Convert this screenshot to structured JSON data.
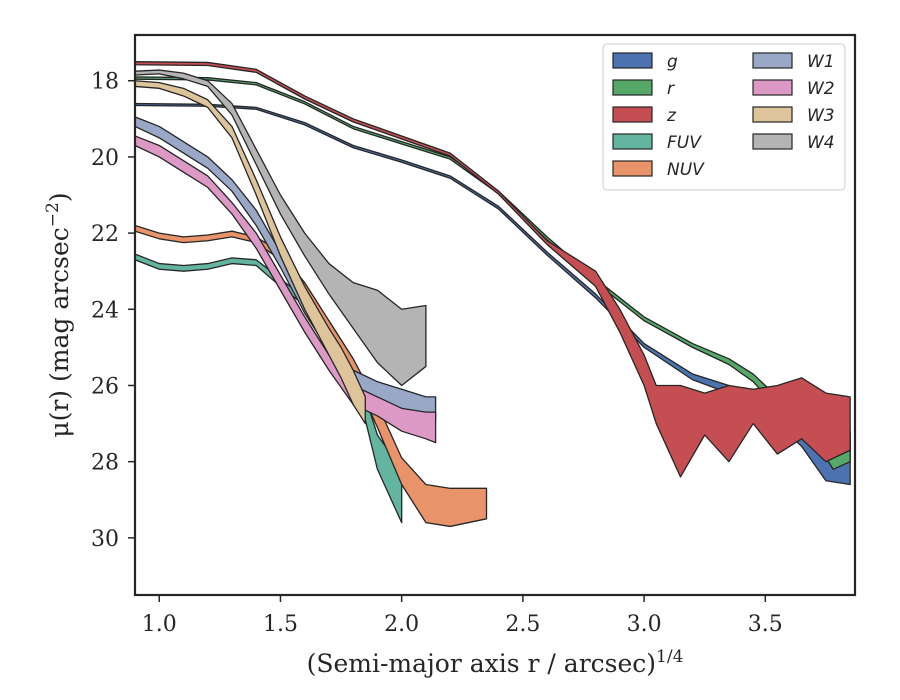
{
  "chart_data": {
    "type": "area",
    "xlabel": "(Semi-major axis r / arcsec)",
    "xlabel_exponent": "1/4",
    "ylabel": "μ(r) (mag arcsec",
    "ylabel_exponent": "−2",
    "ylabel_close": ")",
    "xlim": [
      0.9,
      3.87
    ],
    "ylim": [
      31.5,
      16.8
    ],
    "y_inverted": true,
    "xticks": [
      1.0,
      1.5,
      2.0,
      2.5,
      3.0,
      3.5
    ],
    "xtick_labels": [
      "1.0",
      "1.5",
      "2.0",
      "2.5",
      "3.0",
      "3.5"
    ],
    "yticks": [
      18,
      20,
      22,
      24,
      26,
      28,
      30
    ],
    "ytick_labels": [
      "18",
      "20",
      "22",
      "24",
      "26",
      "28",
      "30"
    ],
    "grid": false,
    "legend_placement": "top-right",
    "legend_columns": 2,
    "series": [
      {
        "name": "g",
        "color": "#4c72b0",
        "points": [
          [
            0.9,
            18.6,
            18.65
          ],
          [
            1.2,
            18.62,
            18.67
          ],
          [
            1.4,
            18.7,
            18.75
          ],
          [
            1.6,
            19.1,
            19.16
          ],
          [
            1.8,
            19.7,
            19.76
          ],
          [
            2.0,
            20.08,
            20.14
          ],
          [
            2.2,
            20.5,
            20.56
          ],
          [
            2.4,
            21.3,
            21.37
          ],
          [
            2.6,
            22.5,
            22.58
          ],
          [
            2.8,
            23.6,
            23.7
          ],
          [
            3.0,
            24.9,
            25.0
          ],
          [
            3.2,
            25.7,
            25.85
          ],
          [
            3.35,
            26.0,
            26.2
          ],
          [
            3.45,
            26.3,
            26.55
          ],
          [
            3.55,
            26.7,
            27.0
          ],
          [
            3.65,
            27.2,
            27.6
          ],
          [
            3.75,
            27.5,
            28.5
          ],
          [
            3.85,
            27.2,
            28.6
          ]
        ]
      },
      {
        "name": "r",
        "color": "#55a868",
        "points": [
          [
            0.9,
            17.9,
            17.96
          ],
          [
            1.2,
            17.92,
            17.98
          ],
          [
            1.4,
            18.05,
            18.11
          ],
          [
            1.6,
            18.55,
            18.61
          ],
          [
            1.8,
            19.2,
            19.26
          ],
          [
            2.0,
            19.6,
            19.66
          ],
          [
            2.2,
            20.0,
            20.06
          ],
          [
            2.4,
            20.9,
            20.97
          ],
          [
            2.6,
            22.1,
            22.18
          ],
          [
            2.8,
            23.2,
            23.3
          ],
          [
            3.0,
            24.2,
            24.3
          ],
          [
            3.2,
            24.9,
            25.0
          ],
          [
            3.35,
            25.3,
            25.45
          ],
          [
            3.45,
            25.7,
            25.9
          ],
          [
            3.55,
            26.3,
            26.6
          ],
          [
            3.65,
            26.6,
            26.9
          ],
          [
            3.72,
            27.2,
            27.6
          ],
          [
            3.78,
            27.3,
            28.2
          ],
          [
            3.85,
            27.3,
            28.0
          ]
        ]
      },
      {
        "name": "z",
        "color": "#c44e52",
        "points": [
          [
            0.9,
            17.5,
            17.58
          ],
          [
            1.2,
            17.52,
            17.6
          ],
          [
            1.4,
            17.7,
            17.78
          ],
          [
            1.6,
            18.4,
            18.48
          ],
          [
            1.8,
            19.0,
            19.08
          ],
          [
            2.0,
            19.45,
            19.53
          ],
          [
            2.2,
            19.9,
            19.98
          ],
          [
            2.4,
            20.9,
            20.98
          ],
          [
            2.6,
            22.2,
            22.3
          ],
          [
            2.8,
            23.0,
            23.4
          ],
          [
            2.9,
            24.0,
            24.6
          ],
          [
            3.0,
            25.2,
            26.0
          ],
          [
            3.05,
            26.0,
            27.0
          ],
          [
            3.15,
            26.0,
            28.4
          ],
          [
            3.25,
            26.2,
            27.3
          ],
          [
            3.35,
            26.0,
            28.0
          ],
          [
            3.45,
            26.1,
            27.0
          ],
          [
            3.55,
            26.0,
            27.8
          ],
          [
            3.65,
            25.8,
            27.4
          ],
          [
            3.75,
            26.2,
            28.0
          ],
          [
            3.85,
            26.3,
            27.7
          ]
        ]
      },
      {
        "name": "FUV",
        "color": "#64b5a0",
        "points": [
          [
            0.9,
            22.55,
            22.7
          ],
          [
            1.0,
            22.8,
            22.95
          ],
          [
            1.1,
            22.85,
            23.0
          ],
          [
            1.2,
            22.8,
            22.95
          ],
          [
            1.3,
            22.65,
            22.8
          ],
          [
            1.4,
            22.7,
            22.85
          ],
          [
            1.5,
            23.2,
            23.4
          ],
          [
            1.6,
            23.7,
            23.9
          ],
          [
            1.7,
            24.3,
            24.5
          ],
          [
            1.8,
            25.3,
            25.6
          ],
          [
            1.9,
            27.3,
            28.2
          ],
          [
            2.0,
            28.2,
            29.6
          ]
        ]
      },
      {
        "name": "NUV",
        "color": "#e8936a",
        "points": [
          [
            0.9,
            21.8,
            21.95
          ],
          [
            1.0,
            22.0,
            22.15
          ],
          [
            1.1,
            22.1,
            22.25
          ],
          [
            1.2,
            22.05,
            22.2
          ],
          [
            1.3,
            21.95,
            22.1
          ],
          [
            1.4,
            22.1,
            22.25
          ],
          [
            1.5,
            22.5,
            22.7
          ],
          [
            1.6,
            23.3,
            23.5
          ],
          [
            1.7,
            24.3,
            24.6
          ],
          [
            1.8,
            25.3,
            25.7
          ],
          [
            1.9,
            26.5,
            27.1
          ],
          [
            2.0,
            27.9,
            28.6
          ],
          [
            2.1,
            28.6,
            29.6
          ],
          [
            2.2,
            28.7,
            29.7
          ],
          [
            2.35,
            28.7,
            29.5
          ]
        ]
      },
      {
        "name": "W1",
        "color": "#9aa8c8",
        "points": [
          [
            0.9,
            18.95,
            19.2
          ],
          [
            1.0,
            19.2,
            19.5
          ],
          [
            1.1,
            19.6,
            19.9
          ],
          [
            1.2,
            20.0,
            20.3
          ],
          [
            1.3,
            20.6,
            20.9
          ],
          [
            1.4,
            21.4,
            21.8
          ],
          [
            1.5,
            22.5,
            22.9
          ],
          [
            1.6,
            23.7,
            24.1
          ],
          [
            1.7,
            24.7,
            25.1
          ],
          [
            1.8,
            25.6,
            26.0
          ],
          [
            1.9,
            25.9,
            26.4
          ],
          [
            2.0,
            26.1,
            26.6
          ],
          [
            2.1,
            26.3,
            26.8
          ],
          [
            2.14,
            26.3,
            26.9
          ]
        ]
      },
      {
        "name": "W2",
        "color": "#dd99c5",
        "points": [
          [
            0.9,
            19.45,
            19.7
          ],
          [
            1.0,
            19.7,
            20.0
          ],
          [
            1.1,
            20.1,
            20.4
          ],
          [
            1.2,
            20.5,
            20.8
          ],
          [
            1.3,
            21.2,
            21.5
          ],
          [
            1.4,
            22.0,
            22.4
          ],
          [
            1.5,
            23.1,
            23.5
          ],
          [
            1.6,
            24.2,
            24.6
          ],
          [
            1.7,
            25.2,
            25.6
          ],
          [
            1.8,
            26.0,
            26.5
          ],
          [
            1.9,
            26.3,
            26.8
          ],
          [
            2.0,
            26.6,
            27.2
          ],
          [
            2.1,
            26.7,
            27.4
          ],
          [
            2.14,
            26.7,
            27.5
          ]
        ]
      },
      {
        "name": "W3",
        "color": "#ddc49a",
        "points": [
          [
            0.9,
            18.0,
            18.15
          ],
          [
            1.0,
            18.05,
            18.2
          ],
          [
            1.1,
            18.2,
            18.4
          ],
          [
            1.2,
            18.5,
            18.7
          ],
          [
            1.3,
            19.2,
            19.5
          ],
          [
            1.4,
            20.6,
            21.0
          ],
          [
            1.5,
            22.1,
            22.6
          ],
          [
            1.6,
            23.4,
            24.0
          ],
          [
            1.7,
            24.5,
            25.2
          ],
          [
            1.75,
            25.0,
            25.8
          ],
          [
            1.8,
            25.6,
            26.5
          ],
          [
            1.85,
            26.3,
            27.0
          ]
        ]
      },
      {
        "name": "W4",
        "color": "#b4b4b4",
        "points": [
          [
            0.9,
            17.75,
            17.85
          ],
          [
            1.0,
            17.72,
            17.82
          ],
          [
            1.1,
            17.8,
            17.95
          ],
          [
            1.2,
            18.0,
            18.15
          ],
          [
            1.3,
            18.6,
            18.9
          ],
          [
            1.4,
            19.8,
            20.2
          ],
          [
            1.5,
            21.0,
            21.5
          ],
          [
            1.6,
            22.0,
            22.6
          ],
          [
            1.7,
            22.8,
            23.6
          ],
          [
            1.8,
            23.3,
            24.5
          ],
          [
            1.9,
            23.5,
            25.4
          ],
          [
            2.0,
            24.0,
            26.0
          ],
          [
            2.1,
            23.9,
            25.5
          ]
        ]
      }
    ]
  }
}
